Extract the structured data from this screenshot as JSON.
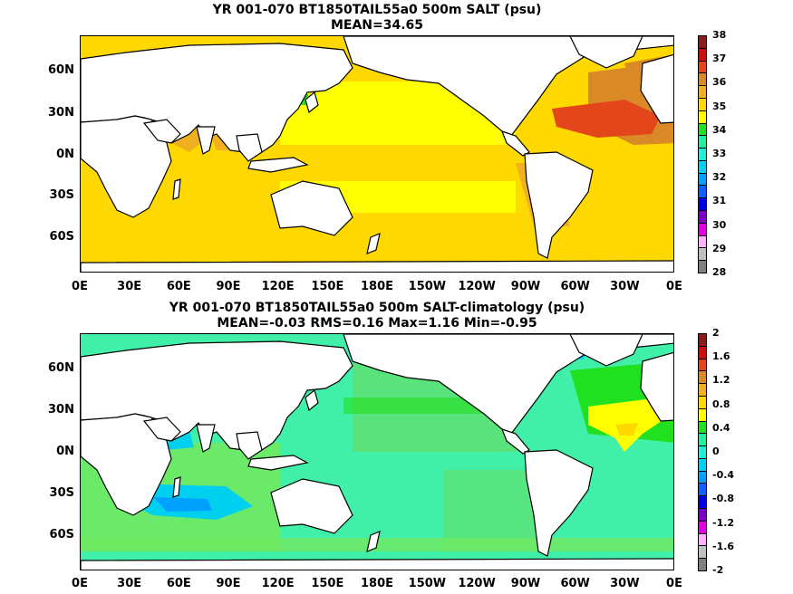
{
  "panels": [
    {
      "title_line1": "YR 001-070 BT1850TAIL55a0 500m SALT (psu)",
      "title_line2": "MEAN=34.65",
      "colorbar_labels": [
        "38",
        "37",
        "36",
        "35",
        "34",
        "33",
        "32",
        "31",
        "30",
        "29",
        "28"
      ],
      "colorbar_colors": [
        "#8b1a1a",
        "#cc1010",
        "#e2461a",
        "#d98a26",
        "#f0b020",
        "#ffd800",
        "#ffff00",
        "#20e020",
        "#20f0a0",
        "#20f0d8",
        "#00d0f0",
        "#00a0ff",
        "#1060ff",
        "#0000e0",
        "#7a00c8",
        "#e000e0",
        "#ffb0ff",
        "#c0c0c0",
        "#808080"
      ],
      "ocean_color": "#ffff00"
    },
    {
      "title_line1": "YR 001-070 BT1850TAIL55a0 500m SALT-climatology (psu)",
      "title_line2": "MEAN=-0.03   RMS=0.16   Max=1.16   Min=-0.95",
      "colorbar_labels": [
        "2",
        "1.6",
        "1.2",
        "0.8",
        "0.4",
        "0",
        "-0.4",
        "-0.8",
        "-1.2",
        "-1.6",
        "-2"
      ],
      "colorbar_colors": [
        "#8b1a1a",
        "#cc1010",
        "#e2461a",
        "#d98a26",
        "#f0b020",
        "#ffd800",
        "#ffff00",
        "#20e020",
        "#20f0a0",
        "#20f0d8",
        "#00d0f0",
        "#00a0ff",
        "#1060ff",
        "#0000e0",
        "#7a00c8",
        "#e000e0",
        "#ffb0ff",
        "#c0c0c0",
        "#808080"
      ],
      "ocean_color": "#40f0a8"
    }
  ],
  "axes": {
    "lat_labels": [
      "60N",
      "30N",
      "0N",
      "30S",
      "60S"
    ],
    "lon_labels": [
      "0E",
      "30E",
      "60E",
      "90E",
      "120E",
      "150E",
      "180E",
      "150W",
      "120W",
      "90W",
      "60W",
      "30W",
      "0E"
    ]
  },
  "colors": {
    "land": "#ffffff",
    "coast": "#000000",
    "salt_orange": "#f0b020",
    "salt_dark_orange": "#e2461a",
    "salt_gold": "#ffd800",
    "salt_green": "#20e020",
    "salt_maroon": "#8b1a1a",
    "anom_green": "#20e020",
    "anom_yellow": "#ffff00",
    "anom_blue": "#00d0f0",
    "anom_darkblue": "#00a0ff",
    "anom_lightgreen": "#90f070"
  }
}
